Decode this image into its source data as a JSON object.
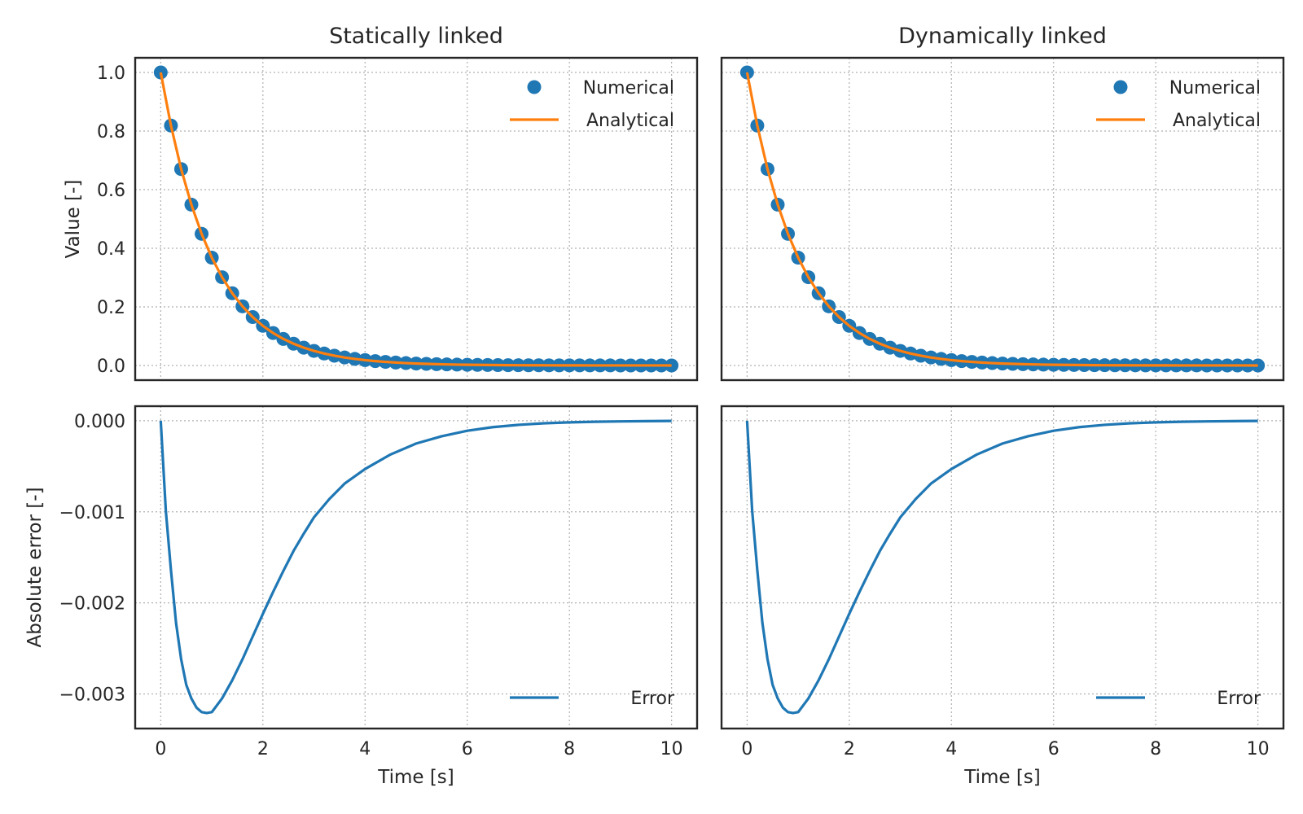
{
  "chart_data": [
    {
      "type": "line",
      "title": "Statically linked",
      "xlabel": "",
      "ylabel": "Value [-]",
      "xlim": [
        -0.5,
        10.5
      ],
      "ylim": [
        -0.05,
        1.05
      ],
      "xticks": [
        0,
        2,
        4,
        6,
        8,
        10
      ],
      "yticks": [
        0.0,
        0.2,
        0.4,
        0.6,
        0.8,
        1.0
      ],
      "ytick_labels": [
        "0.0",
        "0.2",
        "0.4",
        "0.6",
        "0.8",
        "1.0"
      ],
      "grid": true,
      "legend": "top-right",
      "x": [
        0,
        0.2,
        0.4,
        0.6,
        0.8,
        1.0,
        1.2,
        1.4,
        1.6,
        1.8,
        2.0,
        2.2,
        2.4,
        2.6,
        2.8,
        3.0,
        3.2,
        3.4,
        3.6,
        3.8,
        4.0,
        4.2,
        4.4,
        4.6,
        4.8,
        5.0,
        5.2,
        5.4,
        5.6,
        5.8,
        6.0,
        6.2,
        6.4,
        6.6,
        6.8,
        7.0,
        7.2,
        7.4,
        7.6,
        7.8,
        8.0,
        8.2,
        8.4,
        8.6,
        8.8,
        9.0,
        9.2,
        9.4,
        9.6,
        9.8,
        10.0
      ],
      "series": [
        {
          "name": "Numerical",
          "kind": "scatter",
          "color": "#1f77b4",
          "values": [
            1.0,
            0.8187,
            0.6703,
            0.5488,
            0.4493,
            0.3679,
            0.3012,
            0.2466,
            0.2019,
            0.1653,
            0.1353,
            0.1108,
            0.0907,
            0.0743,
            0.0608,
            0.0498,
            0.0408,
            0.0334,
            0.0273,
            0.0224,
            0.0183,
            0.015,
            0.0123,
            0.0101,
            0.0082,
            0.0067,
            0.0055,
            0.0045,
            0.0037,
            0.003,
            0.0025,
            0.002,
            0.0017,
            0.0014,
            0.0011,
            0.0009,
            0.0007,
            0.0006,
            0.0005,
            0.0004,
            0.0003,
            0.0003,
            0.0002,
            0.0002,
            0.0002,
            0.0001,
            0.0001,
            0.0001,
            0.0001,
            0.0001,
            0.0
          ]
        },
        {
          "name": "Analytical",
          "kind": "line",
          "color": "#ff7f0e",
          "values": [
            1.0,
            0.8187,
            0.6703,
            0.5488,
            0.4493,
            0.3679,
            0.3012,
            0.2466,
            0.2019,
            0.1653,
            0.1353,
            0.1108,
            0.0907,
            0.0743,
            0.0608,
            0.0498,
            0.0408,
            0.0334,
            0.0273,
            0.0224,
            0.0183,
            0.015,
            0.0123,
            0.0101,
            0.0082,
            0.0067,
            0.0055,
            0.0045,
            0.0037,
            0.003,
            0.0025,
            0.002,
            0.0017,
            0.0014,
            0.0011,
            0.0009,
            0.0007,
            0.0006,
            0.0005,
            0.0004,
            0.0003,
            0.0003,
            0.0002,
            0.0002,
            0.0002,
            0.0001,
            0.0001,
            0.0001,
            0.0001,
            0.0001,
            0.0
          ]
        }
      ]
    },
    {
      "type": "line",
      "title": "Dynamically linked",
      "xlabel": "",
      "ylabel": "",
      "xlim": [
        -0.5,
        10.5
      ],
      "ylim": [
        -0.05,
        1.05
      ],
      "xticks": [
        0,
        2,
        4,
        6,
        8,
        10
      ],
      "yticks": [
        0.0,
        0.2,
        0.4,
        0.6,
        0.8,
        1.0
      ],
      "grid": true,
      "legend": "top-right",
      "x": [
        0,
        0.2,
        0.4,
        0.6,
        0.8,
        1.0,
        1.2,
        1.4,
        1.6,
        1.8,
        2.0,
        2.2,
        2.4,
        2.6,
        2.8,
        3.0,
        3.2,
        3.4,
        3.6,
        3.8,
        4.0,
        4.2,
        4.4,
        4.6,
        4.8,
        5.0,
        5.2,
        5.4,
        5.6,
        5.8,
        6.0,
        6.2,
        6.4,
        6.6,
        6.8,
        7.0,
        7.2,
        7.4,
        7.6,
        7.8,
        8.0,
        8.2,
        8.4,
        8.6,
        8.8,
        9.0,
        9.2,
        9.4,
        9.6,
        9.8,
        10.0
      ],
      "series": [
        {
          "name": "Numerical",
          "kind": "scatter",
          "color": "#1f77b4",
          "values": [
            1.0,
            0.8187,
            0.6703,
            0.5488,
            0.4493,
            0.3679,
            0.3012,
            0.2466,
            0.2019,
            0.1653,
            0.1353,
            0.1108,
            0.0907,
            0.0743,
            0.0608,
            0.0498,
            0.0408,
            0.0334,
            0.0273,
            0.0224,
            0.0183,
            0.015,
            0.0123,
            0.0101,
            0.0082,
            0.0067,
            0.0055,
            0.0045,
            0.0037,
            0.003,
            0.0025,
            0.002,
            0.0017,
            0.0014,
            0.0011,
            0.0009,
            0.0007,
            0.0006,
            0.0005,
            0.0004,
            0.0003,
            0.0003,
            0.0002,
            0.0002,
            0.0002,
            0.0001,
            0.0001,
            0.0001,
            0.0001,
            0.0001,
            0.0
          ]
        },
        {
          "name": "Analytical",
          "kind": "line",
          "color": "#ff7f0e",
          "values": [
            1.0,
            0.8187,
            0.6703,
            0.5488,
            0.4493,
            0.3679,
            0.3012,
            0.2466,
            0.2019,
            0.1653,
            0.1353,
            0.1108,
            0.0907,
            0.0743,
            0.0608,
            0.0498,
            0.0408,
            0.0334,
            0.0273,
            0.0224,
            0.0183,
            0.015,
            0.0123,
            0.0101,
            0.0082,
            0.0067,
            0.0055,
            0.0045,
            0.0037,
            0.003,
            0.0025,
            0.002,
            0.0017,
            0.0014,
            0.0011,
            0.0009,
            0.0007,
            0.0006,
            0.0005,
            0.0004,
            0.0003,
            0.0003,
            0.0002,
            0.0002,
            0.0002,
            0.0001,
            0.0001,
            0.0001,
            0.0001,
            0.0001,
            0.0
          ]
        }
      ]
    },
    {
      "type": "line",
      "title": "",
      "xlabel": "Time [s]",
      "ylabel": "Absolute error [-]",
      "xlim": [
        -0.5,
        10.5
      ],
      "ylim": [
        -0.00338,
        0.00016
      ],
      "xticks": [
        0,
        2,
        4,
        6,
        8,
        10
      ],
      "yticks": [
        -0.003,
        -0.002,
        -0.001,
        0.0
      ],
      "ytick_labels": [
        "−0.003",
        "−0.002",
        "−0.001",
        "0.000"
      ],
      "grid": true,
      "legend": "bottom-right",
      "x": [
        0,
        0.1,
        0.2,
        0.3,
        0.4,
        0.5,
        0.6,
        0.7,
        0.8,
        0.9,
        1.0,
        1.2,
        1.4,
        1.6,
        1.8,
        2.0,
        2.2,
        2.4,
        2.6,
        2.8,
        3.0,
        3.3,
        3.6,
        4.0,
        4.5,
        5.0,
        5.5,
        6.0,
        6.5,
        7.0,
        7.5,
        8.0,
        8.5,
        9.0,
        9.5,
        10.0
      ],
      "series": [
        {
          "name": "Error",
          "kind": "line",
          "color": "#1f77b4",
          "values": [
            0.0,
            -0.00099,
            -0.00164,
            -0.00222,
            -0.00262,
            -0.0029,
            -0.00305,
            -0.00315,
            -0.0032,
            -0.00321,
            -0.0032,
            -0.00305,
            -0.00285,
            -0.00262,
            -0.00237,
            -0.00212,
            -0.00188,
            -0.00165,
            -0.00143,
            -0.00124,
            -0.00106,
            -0.00086,
            -0.00069,
            -0.00053,
            -0.00037,
            -0.00025,
            -0.00017,
            -0.00011,
            -7e-05,
            -4.5e-05,
            -2.8e-05,
            -1.8e-05,
            -1.1e-05,
            -7e-06,
            -4e-06,
            -2e-06
          ]
        }
      ]
    },
    {
      "type": "line",
      "title": "",
      "xlabel": "Time [s]",
      "ylabel": "",
      "xlim": [
        -0.5,
        10.5
      ],
      "ylim": [
        -0.00338,
        0.00016
      ],
      "xticks": [
        0,
        2,
        4,
        6,
        8,
        10
      ],
      "yticks": [
        -0.003,
        -0.002,
        -0.001,
        0.0
      ],
      "grid": true,
      "legend": "bottom-right",
      "x": [
        0,
        0.1,
        0.2,
        0.3,
        0.4,
        0.5,
        0.6,
        0.7,
        0.8,
        0.9,
        1.0,
        1.2,
        1.4,
        1.6,
        1.8,
        2.0,
        2.2,
        2.4,
        2.6,
        2.8,
        3.0,
        3.3,
        3.6,
        4.0,
        4.5,
        5.0,
        5.5,
        6.0,
        6.5,
        7.0,
        7.5,
        8.0,
        8.5,
        9.0,
        9.5,
        10.0
      ],
      "series": [
        {
          "name": "Error",
          "kind": "line",
          "color": "#1f77b4",
          "values": [
            0.0,
            -0.00099,
            -0.00164,
            -0.00222,
            -0.00262,
            -0.0029,
            -0.00305,
            -0.00315,
            -0.0032,
            -0.00321,
            -0.0032,
            -0.00305,
            -0.00285,
            -0.00262,
            -0.00237,
            -0.00212,
            -0.00188,
            -0.00165,
            -0.00143,
            -0.00124,
            -0.00106,
            -0.00086,
            -0.00069,
            -0.00053,
            -0.00037,
            -0.00025,
            -0.00017,
            -0.00011,
            -7e-05,
            -4.5e-05,
            -2.8e-05,
            -1.8e-05,
            -1.1e-05,
            -7e-06,
            -4e-06,
            -2e-06
          ]
        }
      ]
    }
  ]
}
